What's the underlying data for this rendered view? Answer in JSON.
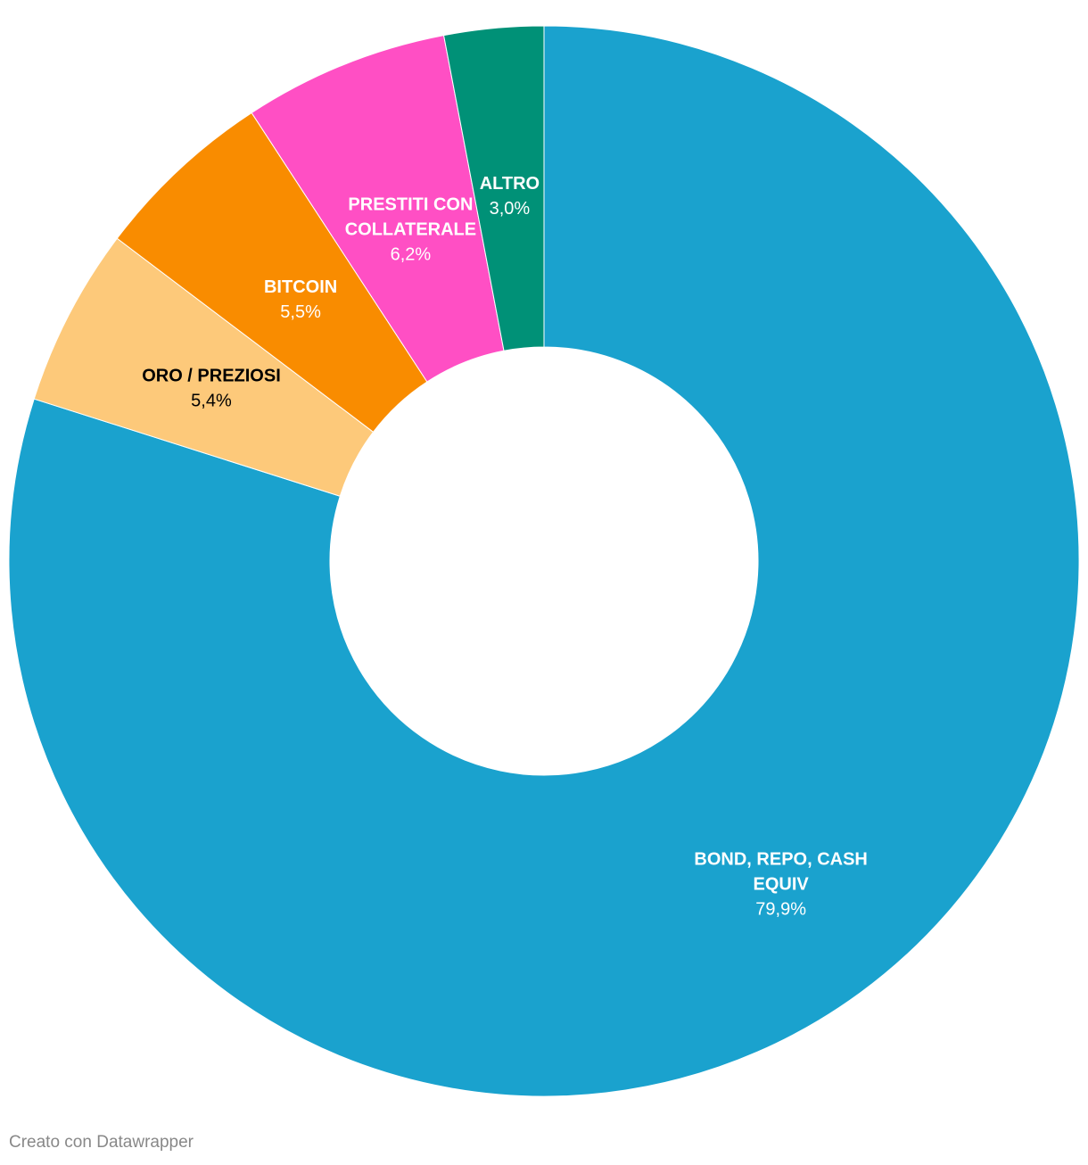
{
  "chart_data": {
    "type": "pie",
    "donut": true,
    "slices": [
      {
        "label": "BOND, REPO, CASH EQUIV",
        "lines": [
          "BOND, REPO, CASH",
          "EQUIV"
        ],
        "value": 79.9,
        "display": "79,9%",
        "color": "#1aa2ce",
        "text_color": "#ffffff"
      },
      {
        "label": "ORO / PREZIOSI",
        "lines": [
          "ORO / PREZIOSI"
        ],
        "value": 5.4,
        "display": "5,4%",
        "color": "#fdc97a",
        "text_color": "#000000"
      },
      {
        "label": "BITCOIN",
        "lines": [
          "BITCOIN"
        ],
        "value": 5.5,
        "display": "5,5%",
        "color": "#f98c00",
        "text_color": "#ffffff"
      },
      {
        "label": "PRESTITI CON COLLATERALE",
        "lines": [
          "PRESTITI CON",
          "COLLATERALE"
        ],
        "value": 6.2,
        "display": "6,2%",
        "color": "#ff4fc4",
        "text_color": "#ffffff"
      },
      {
        "label": "ALTRO",
        "lines": [
          "ALTRO"
        ],
        "value": 3.0,
        "display": "3,0%",
        "color": "#009177",
        "text_color": "#ffffff"
      }
    ]
  },
  "footer": {
    "credit": "Creato con Datawrapper"
  }
}
